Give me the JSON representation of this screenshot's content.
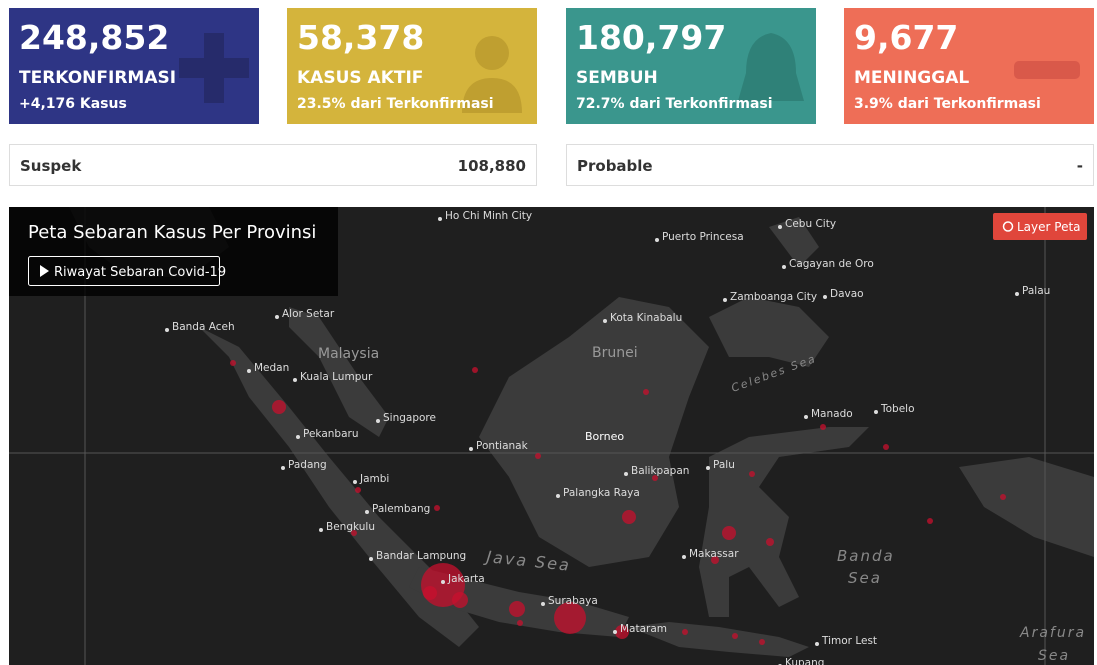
{
  "cards": [
    {
      "value": "248,852",
      "label": "TERKONFIRMASI",
      "sub": "+4,176 Kasus"
    },
    {
      "value": "58,378",
      "label": "KASUS AKTIF",
      "sub": "23.5% dari Terkonfirmasi"
    },
    {
      "value": "180,797",
      "label": "SEMBUH",
      "sub": "72.7% dari Terkonfirmasi"
    },
    {
      "value": "9,677",
      "label": "MENINGGAL",
      "sub": "3.9% dari Terkonfirmasi"
    }
  ],
  "summary": [
    {
      "label": "Suspek",
      "value": "108,880"
    },
    {
      "label": "Probable",
      "value": "-"
    }
  ],
  "map": {
    "title": "Peta Sebaran Kasus Per Provinsi",
    "history_button": "Riwayat Sebaran Covid-19",
    "layer_button": "Layer Peta",
    "places": [
      "Ho Chi Minh City",
      "Cebu City",
      "Puerto Princesa",
      "Cagayan de Oro",
      "Zamboanga City",
      "Davao",
      "Palau",
      "Banda Aceh",
      "Alor Setar",
      "Kota Kinabalu",
      "Medan",
      "Kuala Lumpur",
      "Singapore",
      "Manado",
      "Tobelo",
      "Pekanbaru",
      "Pontianak",
      "Padang",
      "Palu",
      "Balikpapan",
      "Jambi",
      "Palangka Raya",
      "Palembang",
      "Bengkulu",
      "Bandar Lampung",
      "Makassar",
      "Jakarta",
      "Surabaya",
      "Mataram",
      "Timor Lest",
      "Kupang"
    ],
    "regions": [
      "Malaysia",
      "Brunei",
      "Borneo"
    ],
    "seas": [
      "Java Sea",
      "Celebes Sea",
      "Banda",
      "Sea",
      "Arafura",
      "Sea"
    ]
  }
}
